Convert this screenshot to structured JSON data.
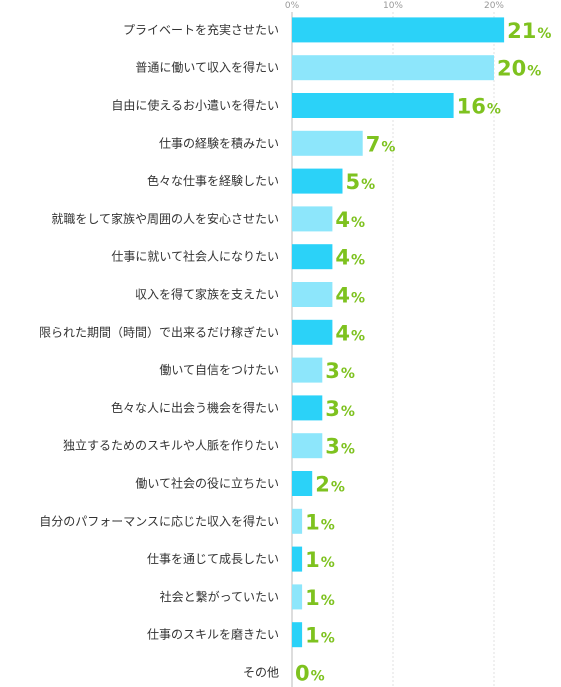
{
  "chart_data": {
    "type": "bar",
    "orientation": "horizontal",
    "title": "",
    "xlabel": "",
    "ylabel": "",
    "xlim": [
      0,
      21
    ],
    "ticks": [
      "0%",
      "10%",
      "20%"
    ],
    "tick_values": [
      0,
      10,
      20
    ],
    "grid": true,
    "unit": "%",
    "colors": [
      "#2bd2f8",
      "#8de6fb"
    ],
    "value_color": "#7ec21f",
    "categories": [
      "プライベートを充実させたい",
      "普通に働いて収入を得たい",
      "自由に使えるお小遣いを得たい",
      "仕事の経験を積みたい",
      "色々な仕事を経験したい",
      "就職をして家族や周囲の人を安心させたい",
      "仕事に就いて社会人になりたい",
      "収入を得て家族を支えたい",
      "限られた期間（時間）で出来るだけ稼ぎたい",
      "働いて自信をつけたい",
      "色々な人に出会う機会を得たい",
      "独立するためのスキルや人脈を作りたい",
      "働いて社会の役に立ちたい",
      "自分のパフォーマンスに応じた収入を得たい",
      "仕事を通じて成長したい",
      "社会と繋がっていたい",
      "仕事のスキルを磨きたい",
      "その他"
    ],
    "values": [
      21,
      20,
      16,
      7,
      5,
      4,
      4,
      4,
      4,
      3,
      3,
      3,
      2,
      1,
      1,
      1,
      1,
      0
    ],
    "value_labels": [
      "21",
      "20",
      "16",
      "7",
      "5",
      "4",
      "4",
      "4",
      "4",
      "3",
      "3",
      "3",
      "2",
      "1",
      "1",
      "1",
      "1",
      "0"
    ]
  }
}
